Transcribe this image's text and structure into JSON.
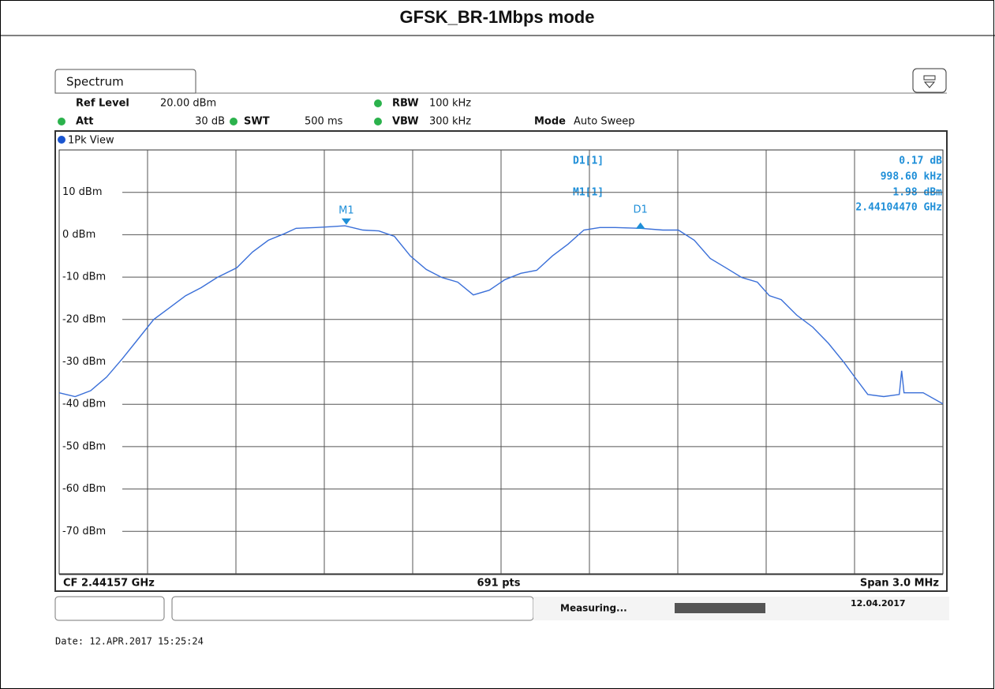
{
  "chart_data": {
    "type": "line",
    "title": "GFSK_BR-1Mbps mode",
    "tab": "Spectrum",
    "settings": {
      "ref_label": "Ref Level",
      "ref_value": "20.00 dBm",
      "att_label": "Att",
      "att_value": "30 dB",
      "swt_label": "SWT",
      "swt_value": "500 ms",
      "rbw_label": "RBW",
      "rbw_value": "100 kHz",
      "vbw_label": "VBW",
      "vbw_value": "300 kHz",
      "mode_label": "Mode",
      "mode_value": "Auto Sweep"
    },
    "view": "1Pk View",
    "marker_info": [
      {
        "name": "D1[1]",
        "level": "0.17 dB",
        "freq": "998.60 kHz"
      },
      {
        "name": "M1[1]",
        "level": "1.98 dBm",
        "freq": "2.44104470 GHz"
      }
    ],
    "footer": {
      "center": "CF 2.44157 GHz",
      "points": "691 pts",
      "span": "Span 3.0 MHz"
    },
    "status": {
      "state": "Measuring...",
      "date": "12.04.2017"
    },
    "date_line": "Date: 12.APR.2017  15:25:24",
    "color": "#3a6fd8",
    "xlim": [
      2.44007,
      2.44307
    ],
    "ylim": [
      -80,
      20
    ],
    "yticks": [
      {
        "value": 10,
        "label": "10 dBm"
      },
      {
        "value": 0,
        "label": "0 dBm"
      },
      {
        "value": -10,
        "label": "-10 dBm"
      },
      {
        "value": -20,
        "label": "-20 dBm"
      },
      {
        "value": -30,
        "label": "-30 dBm"
      },
      {
        "value": -40,
        "label": "-40 dBm"
      },
      {
        "value": -50,
        "label": "-50 dBm"
      },
      {
        "value": -60,
        "label": "-60 dBm"
      },
      {
        "value": -70,
        "label": "-70 dBm"
      }
    ],
    "grid": true,
    "x": [
      2.44007,
      2.440124,
      2.440177,
      2.440231,
      2.440284,
      2.440338,
      2.440391,
      2.440445,
      2.440499,
      2.440552,
      2.440606,
      2.440673,
      2.440726,
      2.44078,
      2.440833,
      2.440874,
      2.440941,
      2.440994,
      2.44104,
      2.441101,
      2.441155,
      2.441208,
      2.441262,
      2.441316,
      2.441369,
      2.441423,
      2.441476,
      2.44153,
      2.441583,
      2.441637,
      2.441691,
      2.441744,
      2.441798,
      2.441851,
      2.441905,
      2.441958,
      2.442044,
      2.442119,
      2.442172,
      2.442226,
      2.44228,
      2.442333,
      2.442387,
      2.44244,
      2.442481,
      2.442521,
      2.442574,
      2.442628,
      2.442681,
      2.442735,
      2.442775,
      2.442815,
      2.442869,
      2.442922,
      2.44293,
      2.442938,
      2.443003,
      2.44307
    ],
    "values": [
      -37.3,
      -38.2,
      -36.8,
      -33.6,
      -29.3,
      -24.6,
      -20,
      -17.2,
      -14.4,
      -12.5,
      -10.1,
      -7.8,
      -4.1,
      -1.3,
      0.2,
      1.5,
      1.7,
      1.9,
      2.1,
      1.1,
      0.9,
      -0.4,
      -5,
      -8.2,
      -10.1,
      -11.2,
      -14.2,
      -13.1,
      -10.6,
      -9.1,
      -8.4,
      -5,
      -2.2,
      1.1,
      1.7,
      1.7,
      1.5,
      1.1,
      1.1,
      -1.3,
      -5.6,
      -7.8,
      -10.1,
      -11.2,
      -14.4,
      -15.3,
      -19,
      -21.8,
      -25.6,
      -30.2,
      -34,
      -37.7,
      -38.2,
      -37.7,
      -32.1,
      -37.3,
      -37.3,
      -39.9
    ],
    "markers": [
      {
        "label": "M1",
        "x": 2.4410447,
        "y": 1.98,
        "direction": "down"
      },
      {
        "label": "D1",
        "x": 2.4420433,
        "y": 2.15,
        "direction": "up"
      }
    ]
  }
}
